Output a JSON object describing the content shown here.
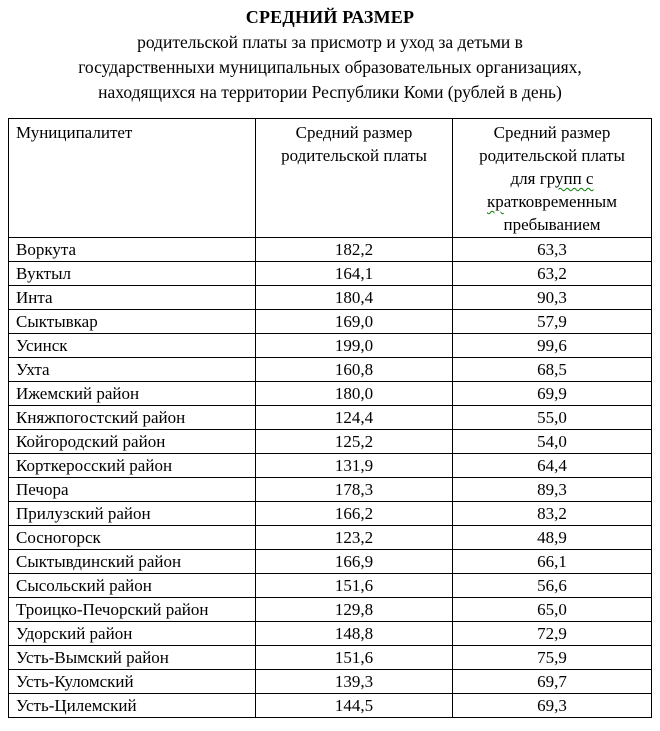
{
  "title": {
    "line1": "СРЕДНИЙ РАЗМЕР",
    "line2": "родительской платы за присмотр и уход за детьми в",
    "line3": "государственныхи муниципальных образовательных организациях,",
    "line4": "находящихся на территории Республики Коми (рублей в день)"
  },
  "table": {
    "header": {
      "col1": "Муниципалитет",
      "col2_lines": [
        [
          {
            "text": "Средний размер",
            "misspelled": false
          }
        ],
        [
          {
            "text": "родительской платы",
            "misspelled": false
          }
        ]
      ],
      "col3_lines": [
        [
          {
            "text": "Средний размер",
            "misspelled": false
          }
        ],
        [
          {
            "text": "родительской платы",
            "misspelled": false
          }
        ],
        [
          {
            "text": "для гр",
            "misspelled": false
          },
          {
            "text": "упп с",
            "misspelled": true
          }
        ],
        [
          {
            "text": "кр",
            "misspelled": true
          },
          {
            "text": "атковременным",
            "misspelled": false
          }
        ],
        [
          {
            "text": "пребыванием",
            "misspelled": false
          }
        ]
      ]
    },
    "rows": [
      {
        "municipality": "Воркута",
        "avg_fee": "182,2",
        "short_stay_fee": "63,3"
      },
      {
        "municipality": "Вуктыл",
        "avg_fee": "164,1",
        "short_stay_fee": "63,2"
      },
      {
        "municipality": "Инта",
        "avg_fee": "180,4",
        "short_stay_fee": "90,3"
      },
      {
        "municipality": "Сыктывкар",
        "avg_fee": "169,0",
        "short_stay_fee": "57,9"
      },
      {
        "municipality": "Усинск",
        "avg_fee": "199,0",
        "short_stay_fee": "99,6"
      },
      {
        "municipality": "Ухта",
        "avg_fee": "160,8",
        "short_stay_fee": "68,5"
      },
      {
        "municipality": "Ижемский район",
        "avg_fee": "180,0",
        "short_stay_fee": "69,9"
      },
      {
        "municipality": "Княжпогостский район",
        "avg_fee": "124,4",
        "short_stay_fee": "55,0"
      },
      {
        "municipality": "Койгородский район",
        "avg_fee": "125,2",
        "short_stay_fee": "54,0"
      },
      {
        "municipality": "Корткеросский район",
        "avg_fee": "131,9",
        "short_stay_fee": "64,4"
      },
      {
        "municipality": "Печора",
        "avg_fee": "178,3",
        "short_stay_fee": "89,3"
      },
      {
        "municipality": "Прилузский район",
        "avg_fee": "166,2",
        "short_stay_fee": "83,2"
      },
      {
        "municipality": "Сосногорск",
        "avg_fee": "123,2",
        "short_stay_fee": "48,9"
      },
      {
        "municipality": "Сыктывдинский район",
        "avg_fee": "166,9",
        "short_stay_fee": "66,1"
      },
      {
        "municipality": "Сысольский район",
        "avg_fee": "151,6",
        "short_stay_fee": "56,6"
      },
      {
        "municipality": "Троицко-Печорский район",
        "avg_fee": "129,8",
        "short_stay_fee": "65,0"
      },
      {
        "municipality": "Удорский район",
        "avg_fee": "148,8",
        "short_stay_fee": "72,9"
      },
      {
        "municipality": "Усть-Вымский район",
        "avg_fee": "151,6",
        "short_stay_fee": "75,9"
      },
      {
        "municipality": "Усть-Куломский",
        "avg_fee": "139,3",
        "short_stay_fee": "69,7"
      },
      {
        "municipality": "Усть-Цилемский",
        "avg_fee": "144,5",
        "short_stay_fee": "69,3"
      }
    ]
  },
  "colors": {
    "spellcheck_squiggle": "#008000",
    "border": "#000000",
    "text": "#000000",
    "background": "#ffffff"
  }
}
